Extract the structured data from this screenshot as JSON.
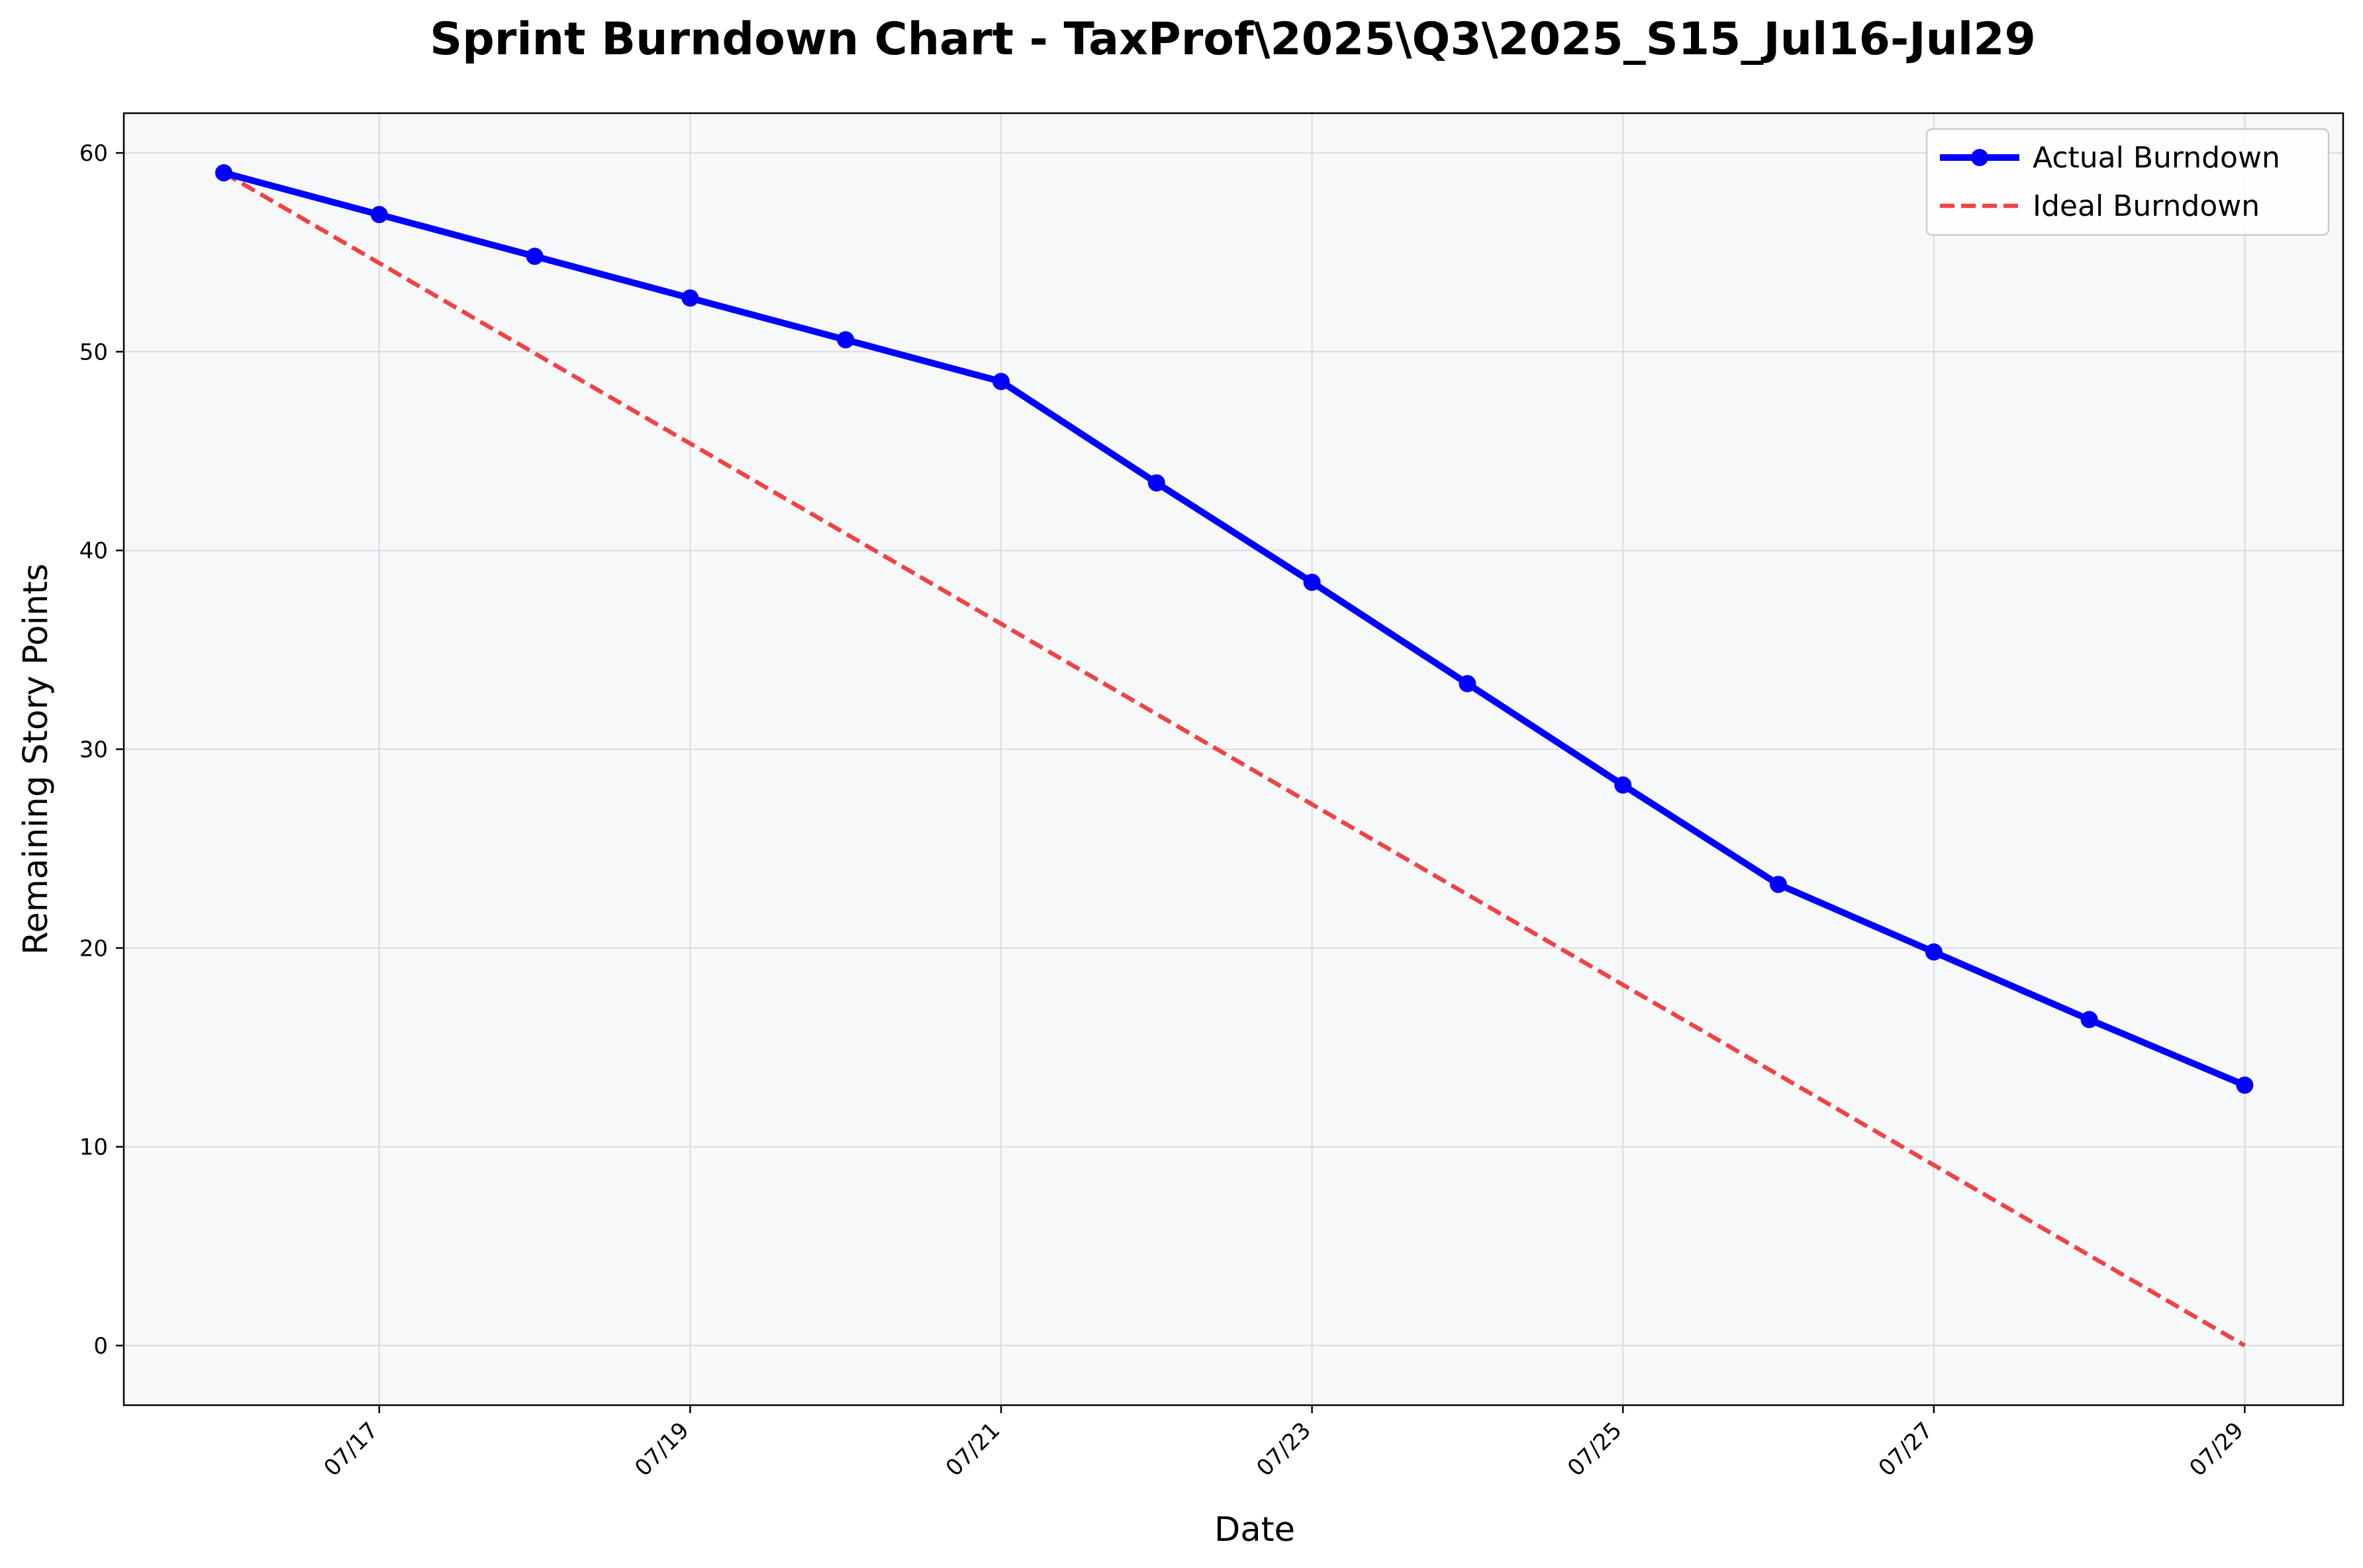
{
  "chart_data": {
    "type": "line",
    "title": "Sprint Burndown Chart - TaxProf\\2025\\Q3\\2025_S15_Jul16-Jul29",
    "xlabel": "Date",
    "ylabel": "Remaining Story Points",
    "x": [
      "07/16",
      "07/17",
      "07/18",
      "07/19",
      "07/20",
      "07/21",
      "07/22",
      "07/23",
      "07/24",
      "07/25",
      "07/26",
      "07/27",
      "07/28",
      "07/29"
    ],
    "x_ticks": [
      "07/17",
      "07/19",
      "07/21",
      "07/23",
      "07/25",
      "07/27",
      "07/29"
    ],
    "y_ticks": [
      0,
      10,
      20,
      30,
      40,
      50,
      60
    ],
    "ylim": [
      -3,
      62
    ],
    "grid": true,
    "legend_position": "top-right",
    "background_color": "#f7f8fa",
    "series": [
      {
        "name": "Actual Burndown",
        "color": "#0000ff",
        "style": "solid-with-markers",
        "values": [
          59.0,
          56.9,
          54.8,
          52.7,
          50.6,
          48.5,
          43.4,
          38.4,
          33.3,
          28.2,
          23.2,
          19.8,
          16.4,
          13.1
        ]
      },
      {
        "name": "Ideal Burndown",
        "color": "#ef4444",
        "style": "dashed",
        "values": [
          59.0,
          54.46,
          49.92,
          45.38,
          40.85,
          36.31,
          31.77,
          27.23,
          22.69,
          18.15,
          13.62,
          9.08,
          4.54,
          0.0
        ]
      }
    ]
  }
}
